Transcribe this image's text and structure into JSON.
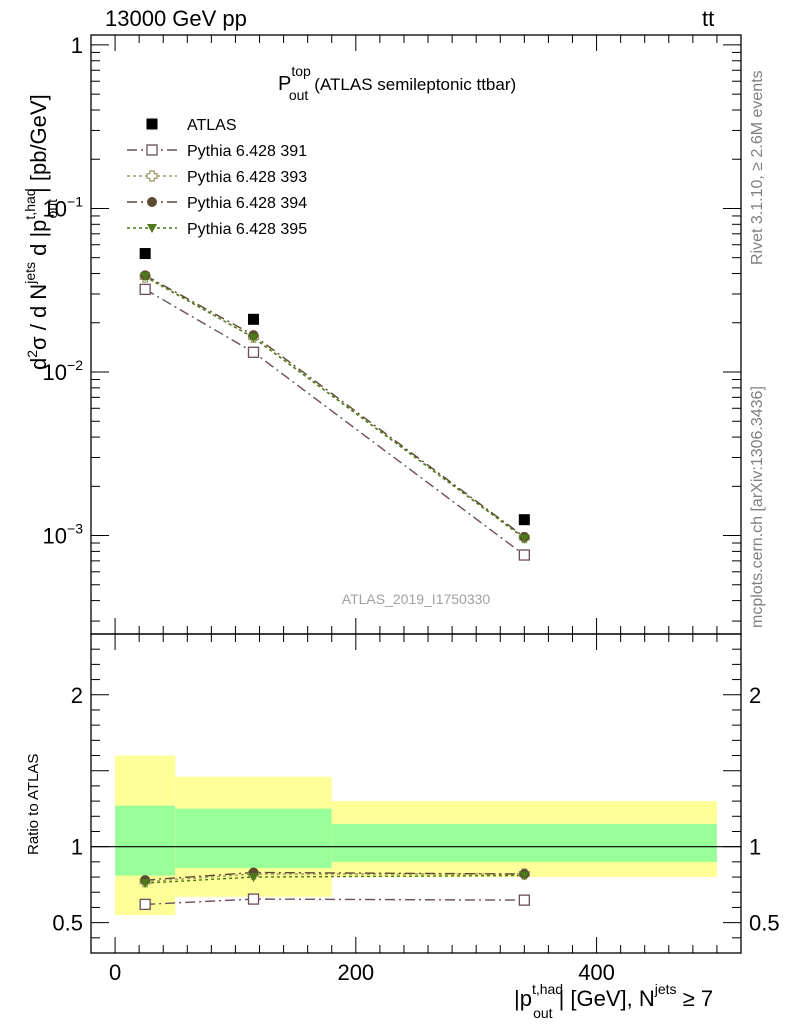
{
  "header": {
    "left": "13000 GeV pp",
    "right_base": "tt",
    "right_bar": "¯"
  },
  "side": {
    "rivet": "Rivet 3.1.10, ≥ 2.6M events",
    "site": "mcplots.cern.ch [arXiv:1306.3436]"
  },
  "title": {
    "symbol": "P",
    "sup": "top",
    "sub": "out",
    "rest": "(ATLAS semileptonic ttbar)"
  },
  "watermark": "ATLAS_2019_I1750330",
  "ylabel": {
    "d2": "d",
    "d2sup": "2",
    "sigma": "σ",
    "slash": " / d N",
    "jets_sup": "jets",
    "mid": " d |p",
    "p_sup": "t,had",
    "p_sub": "out",
    "units": "| [pb/GeV]"
  },
  "ratio_ylabel": "Ratio to ATLAS",
  "xlabel": {
    "pre": "|p",
    "sup": "t,had",
    "sub": "out",
    "mid": "| [GeV], N",
    "jets_sup": "jets",
    "post": " ≥ 7"
  },
  "main_ticks": {
    "y": [
      {
        "value": 1,
        "base": "1",
        "exp": ""
      },
      {
        "value": 0.1,
        "base": "10",
        "exp": "−1"
      },
      {
        "value": 0.01,
        "base": "10",
        "exp": "−2"
      },
      {
        "value": 0.001,
        "base": "10",
        "exp": "−3"
      }
    ]
  },
  "ratio_ticks": {
    "y": [
      {
        "value": 2,
        "label": "2"
      },
      {
        "value": 1,
        "label": "1"
      },
      {
        "value": 0.5,
        "label": "0.5"
      }
    ]
  },
  "x_ticks": [
    {
      "value": 0,
      "label": "0"
    },
    {
      "value": 200,
      "label": "200"
    },
    {
      "value": 400,
      "label": "400"
    }
  ],
  "chart_data": {
    "type": "scatter",
    "title": "P_out^top (ATLAS semileptonic ttbar)",
    "xlim": [
      -20,
      520
    ],
    "ylim_main": [
      0.00025,
      1.15
    ],
    "yscale_main": "log",
    "ylim_ratio": [
      0.3,
      2.4
    ],
    "legend_placement": "top-left",
    "bins": [
      [
        0,
        50
      ],
      [
        50,
        180
      ],
      [
        180,
        500
      ]
    ],
    "x": [
      25,
      115,
      340
    ],
    "data": {
      "name": "ATLAS",
      "values": [
        0.053,
        0.021,
        0.00125
      ]
    },
    "band_inner": [
      [
        0.81,
        1.27
      ],
      [
        0.86,
        1.25
      ],
      [
        0.9,
        1.15
      ]
    ],
    "band_outer": [
      [
        0.55,
        1.6
      ],
      [
        0.67,
        1.46
      ],
      [
        0.8,
        1.3
      ]
    ],
    "series": [
      {
        "name": "Pythia 6.428 391",
        "values": [
          0.032,
          0.0132,
          0.00076
        ],
        "ratio": [
          0.62,
          0.655,
          0.648
        ],
        "color": "#6b4e5c",
        "marker": "open-square",
        "dash": "10,4,2,4"
      },
      {
        "name": "Pythia 6.428 393",
        "values": [
          0.038,
          0.0163,
          0.00097
        ],
        "ratio": [
          0.77,
          0.82,
          0.82
        ],
        "color": "#9b9b68",
        "marker": "open-cross",
        "dash": "3,3"
      },
      {
        "name": "Pythia 6.428 394",
        "values": [
          0.039,
          0.0168,
          0.00098
        ],
        "ratio": [
          0.78,
          0.83,
          0.82
        ],
        "color": "#5d4a33",
        "marker": "filled-circle",
        "dash": "10,4,2,4"
      },
      {
        "name": "Pythia 6.428 395",
        "values": [
          0.0385,
          0.0162,
          0.00096
        ],
        "ratio": [
          0.76,
          0.8,
          0.81
        ],
        "color": "#4c7a1a",
        "marker": "filled-triangle-down",
        "dash": "3,3"
      }
    ],
    "colors": {
      "band_inner": "#99ff99",
      "band_outer": "#ffff99",
      "data": "#000000"
    }
  }
}
